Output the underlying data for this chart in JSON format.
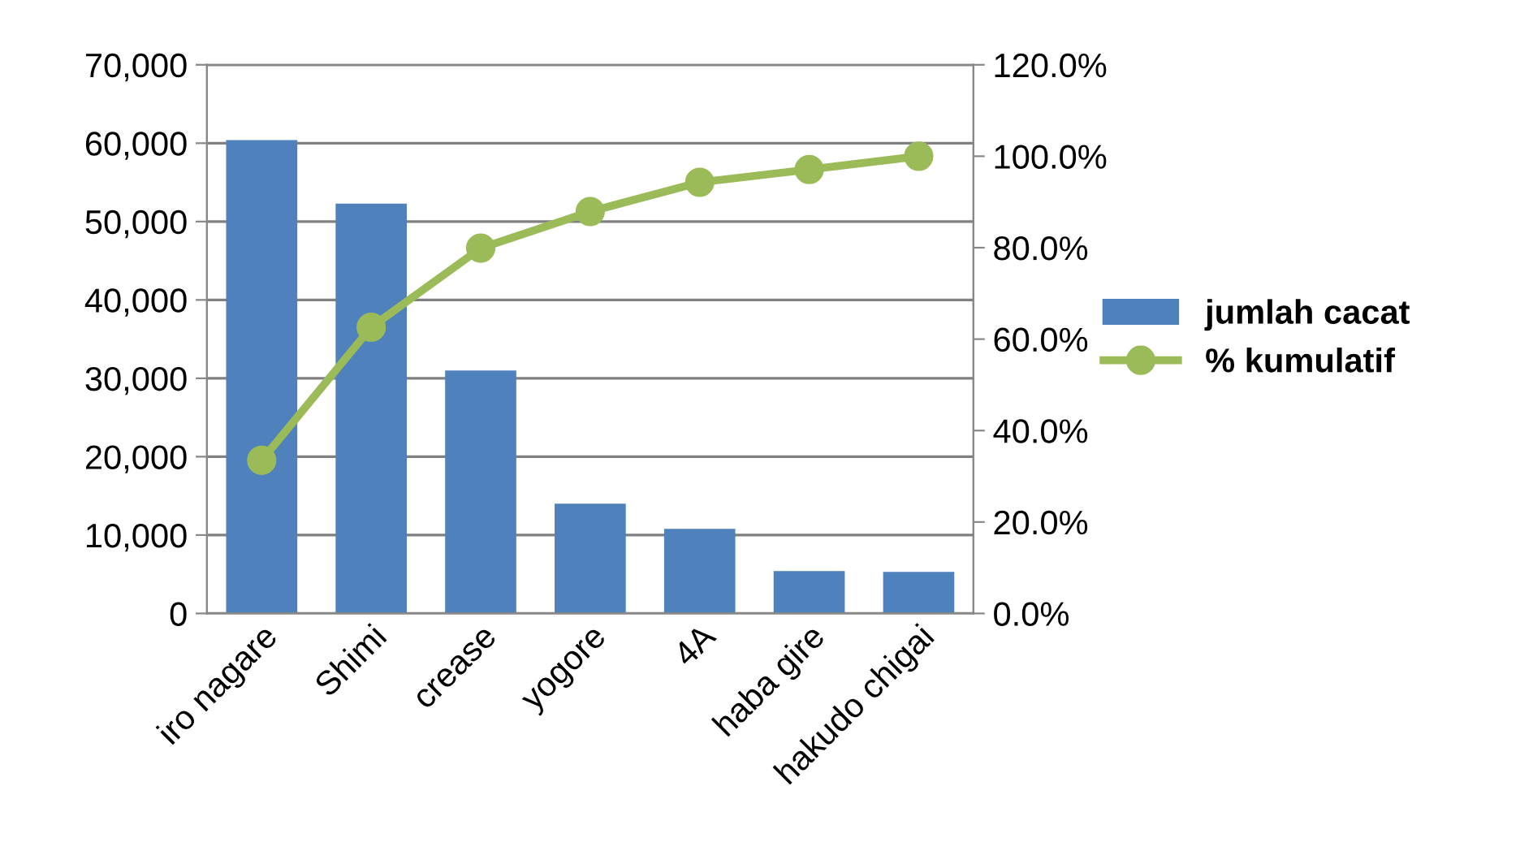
{
  "chart_data": {
    "type": "bar",
    "categories": [
      "iro nagare",
      "Shimi",
      "crease",
      "yogore",
      "4A",
      "haba gire",
      "hakudo chigai"
    ],
    "series": [
      {
        "name": "jumlah cacat",
        "color": "#4f81bd",
        "values": [
          60400,
          52300,
          31000,
          14000,
          10800,
          5400,
          5300
        ]
      },
      {
        "name": "% kumulatif",
        "type": "line",
        "axis": "y2",
        "color": "#9bbb59",
        "marker": "circle",
        "values": [
          33.5,
          62.6,
          79.9,
          87.9,
          94.3,
          97.1,
          100
        ]
      }
    ],
    "ylim": [
      0,
      70000
    ],
    "yticks": [
      {
        "value": 0,
        "label": "0"
      },
      {
        "value": 10000,
        "label": "10,000"
      },
      {
        "value": 20000,
        "label": "20,000"
      },
      {
        "value": 30000,
        "label": "30,000"
      },
      {
        "value": 40000,
        "label": "40,000"
      },
      {
        "value": 50000,
        "label": "50,000"
      },
      {
        "value": 60000,
        "label": "60,000"
      },
      {
        "value": 70000,
        "label": "70,000"
      }
    ],
    "y2lim": [
      0,
      120
    ],
    "y2ticks": [
      {
        "value": 0,
        "label": "0.0%"
      },
      {
        "value": 20,
        "label": "20.0%"
      },
      {
        "value": 40,
        "label": "40.0%"
      },
      {
        "value": 60,
        "label": "60.0%"
      },
      {
        "value": 80,
        "label": "80.0%"
      },
      {
        "value": 100,
        "label": "100.0%"
      },
      {
        "value": 120,
        "label": "120.0%"
      }
    ],
    "grid": "y",
    "legend": "right"
  }
}
